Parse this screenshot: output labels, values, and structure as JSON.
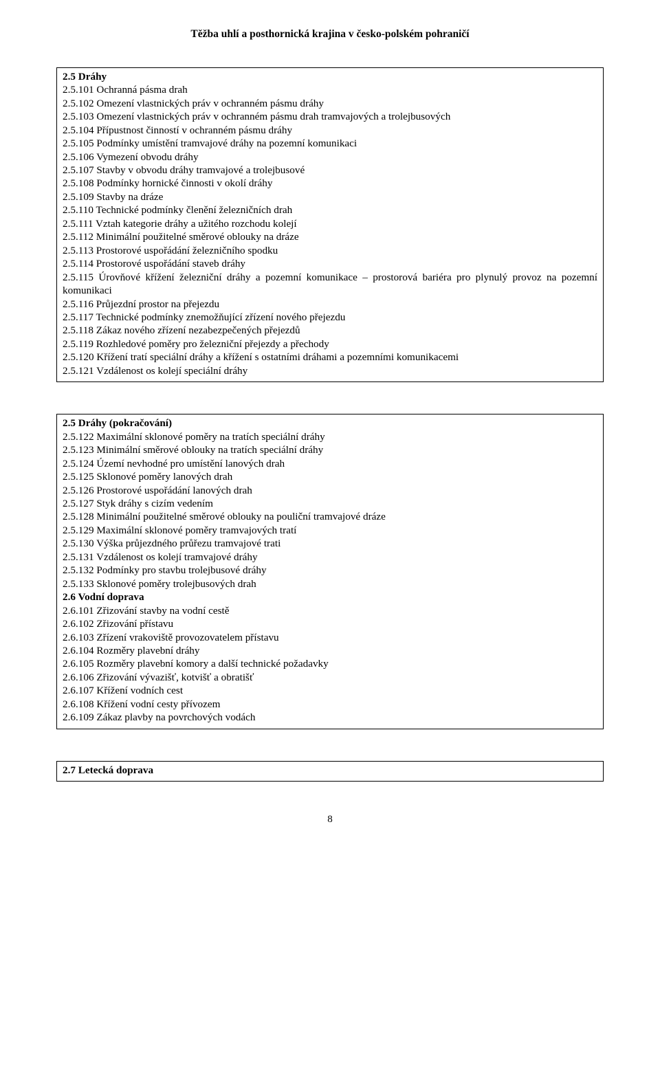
{
  "doc_title": "Těžba uhlí a posthornická krajina v česko-polském pohraničí",
  "page_number": "8",
  "block1": {
    "heading": "2.5 Dráhy",
    "lines": [
      "2.5.101 Ochranná pásma drah",
      "2.5.102 Omezení vlastnických práv v ochranném pásmu dráhy",
      "2.5.103 Omezení vlastnických práv v ochranném pásmu drah tramvajových a trolejbusových",
      "2.5.104 Přípustnost činností v ochranném pásmu dráhy",
      "2.5.105 Podmínky umístění tramvajové dráhy na pozemní komunikaci",
      "2.5.106 Vymezení obvodu dráhy",
      "2.5.107 Stavby v obvodu dráhy tramvajové a trolejbusové",
      "2.5.108 Podmínky hornické činnosti v okolí dráhy",
      "2.5.109 Stavby na dráze",
      "2.5.110 Technické podmínky členění železničních drah",
      "2.5.111 Vztah kategorie dráhy a užitého rozchodu kolejí",
      "2.5.112 Minimální použitelné směrové oblouky na dráze",
      "2.5.113 Prostorové uspořádání železničního spodku",
      "2.5.114 Prostorové uspořádání staveb dráhy"
    ],
    "justified_line": "2.5.115 Úrovňové křížení železniční dráhy a pozemní komunikace – prostorová bariéra pro plynulý provoz na pozemní komunikaci",
    "lines_after": [
      "2.5.116 Průjezdní prostor na přejezdu",
      "2.5.117 Technické podmínky znemožňující zřízení nového přejezdu",
      "2.5.118 Zákaz nového zřízení nezabezpečených přejezdů",
      "2.5.119 Rozhledové poměry pro železniční přejezdy a přechody",
      "2.5.120 Křížení tratí speciální dráhy a křížení s ostatními dráhami a pozemními komunikacemi",
      "2.5.121 Vzdálenost os kolejí speciální dráhy"
    ]
  },
  "block2": {
    "heading1": "2.5 Dráhy (pokračování)",
    "lines1": [
      "2.5.122 Maximální sklonové poměry na tratích speciální dráhy",
      "2.5.123 Minimální směrové oblouky na tratích speciální dráhy",
      "2.5.124 Území nevhodné pro umístění lanových drah",
      "2.5.125 Sklonové poměry lanových drah",
      "2.5.126 Prostorové uspořádání lanových drah",
      "2.5.127 Styk dráhy s cizím vedením",
      "2.5.128 Minimální použitelné směrové oblouky na pouliční tramvajové dráze",
      "2.5.129 Maximální sklonové poměry tramvajových tratí",
      "2.5.130 Výška průjezdného průřezu tramvajové trati",
      "2.5.131 Vzdálenost os kolejí tramvajové dráhy",
      "2.5.132 Podmínky pro stavbu trolejbusové dráhy",
      "2.5.133 Sklonové poměry trolejbusových drah"
    ],
    "heading2": "2.6 Vodní doprava",
    "lines2": [
      "2.6.101 Zřizování stavby na vodní cestě",
      "2.6.102 Zřizování přístavu",
      "2.6.103 Zřízení vrakoviště provozovatelem přístavu",
      "2.6.104 Rozměry plavební dráhy",
      "2.6.105 Rozměry plavební komory a další technické požadavky",
      "2.6.106 Zřizování vývazišť, kotvišť a obratišť",
      "2.6.107 Křížení vodních cest",
      "2.6.108 Křížení vodní cesty přívozem",
      "2.6.109 Zákaz plavby na povrchových vodách"
    ]
  },
  "block3": {
    "heading": "2.7 Letecká doprava"
  }
}
